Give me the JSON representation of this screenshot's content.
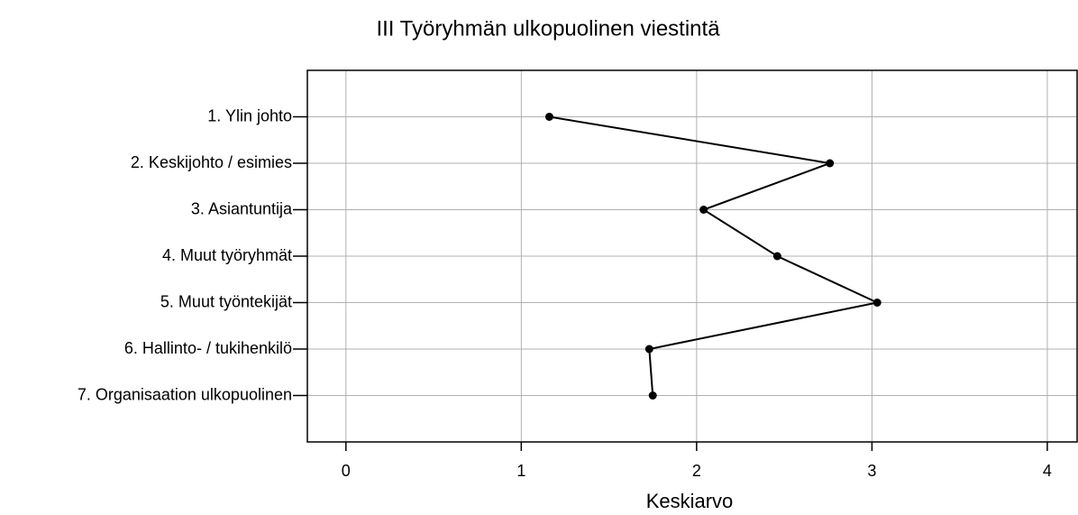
{
  "chart_data": {
    "type": "line",
    "orientation": "horizontal",
    "title": "III Työryhmän ulkopuolinen viestintä",
    "x_label": "Keskiarvo",
    "categories": [
      "1. Ylin johto",
      "2. Keskijohto / esimies",
      "3. Asiantuntija",
      "4. Muut työryhmät",
      "5. Muut työntekijät",
      "6. Hallinto- / tukihenkilö",
      "7. Organisaation ulkopuolinen"
    ],
    "values": [
      1.16,
      2.76,
      2.04,
      2.46,
      3.03,
      1.73,
      1.75
    ],
    "color": "#000000",
    "xlim": [
      -0.22,
      4.17
    ],
    "xticks": [
      0,
      1,
      2,
      3,
      4
    ],
    "grid": true
  }
}
